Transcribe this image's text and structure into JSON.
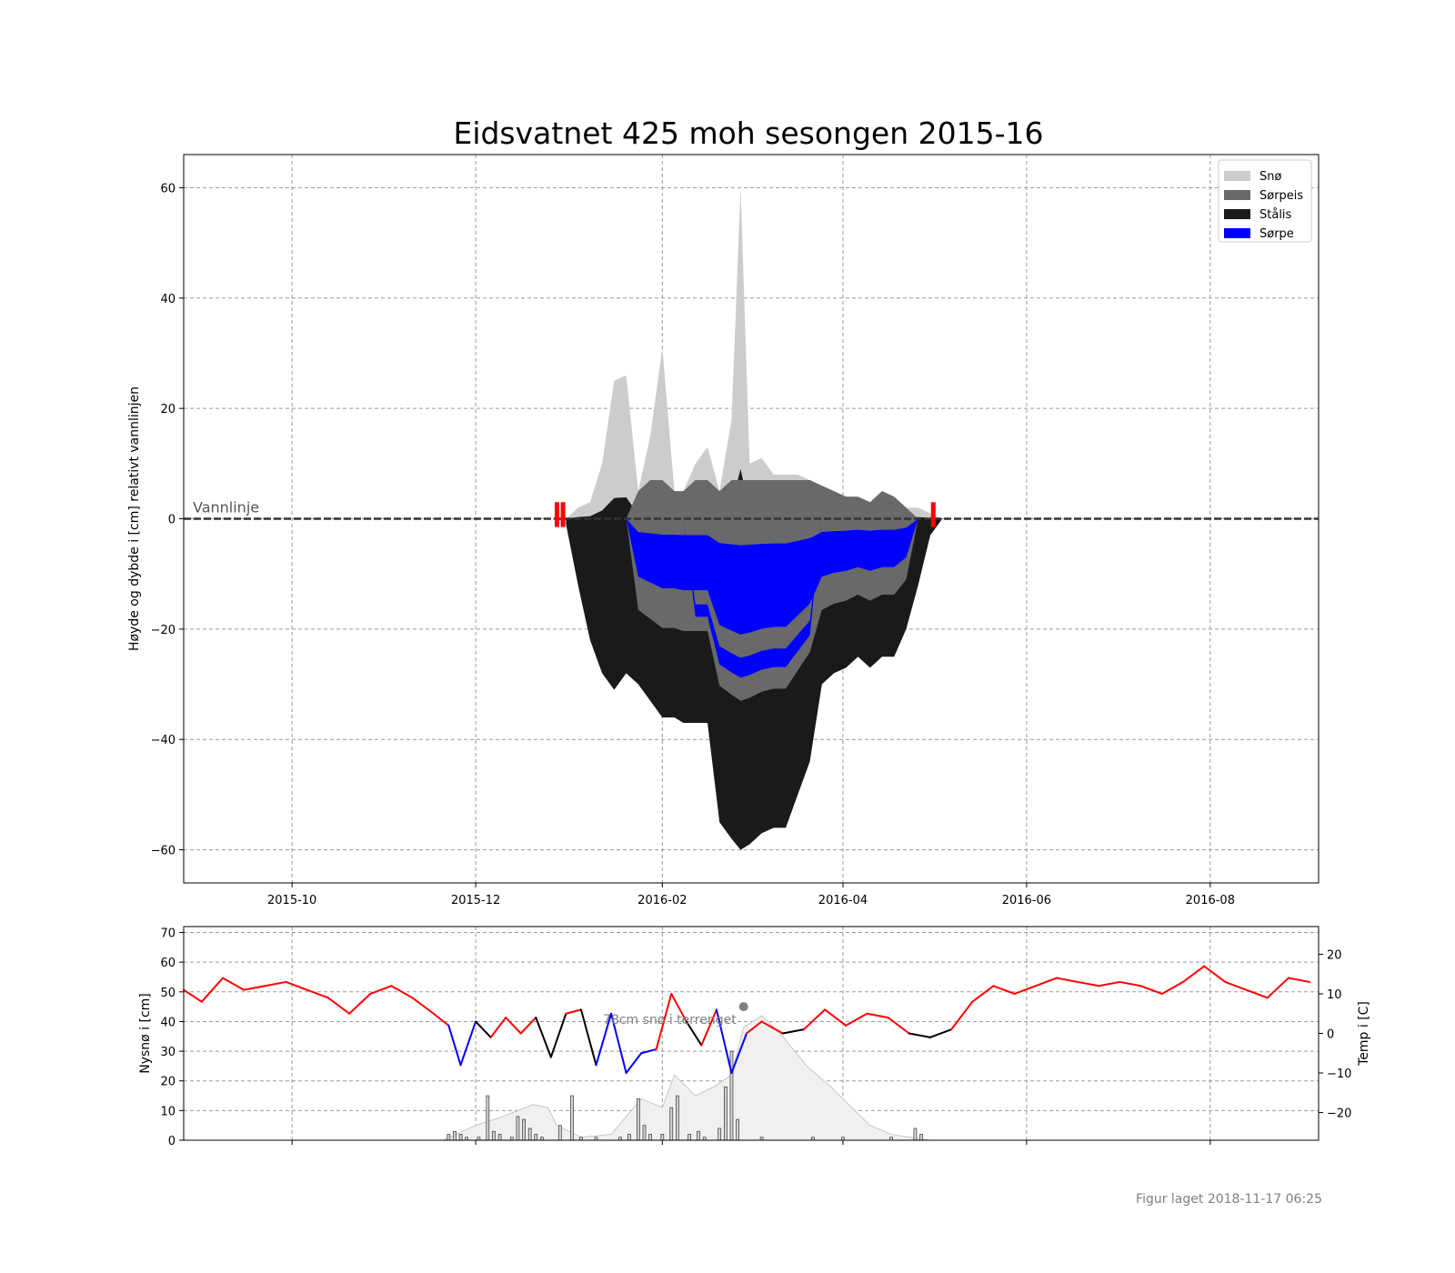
{
  "chart_data": [
    {
      "type": "area",
      "title": "Eidsvatnet 425 moh sesongen 2015-16",
      "xlabel": "",
      "ylabel": "Høyde og dybde i [cm] relativt vannlinjen",
      "xlim": [
        "2015-08-26",
        "2016-09-06"
      ],
      "ylim": [
        -66,
        66
      ],
      "x_ticks": [
        "2015-10",
        "2015-12",
        "2016-02",
        "2016-04",
        "2016-06",
        "2016-08"
      ],
      "y_ticks": [
        -60,
        -40,
        -20,
        0,
        20,
        40,
        60
      ],
      "grid": true,
      "legend_position": "top-right",
      "waterline_label": "Vannlinje",
      "legend": [
        {
          "name": "Snø",
          "color": "#cccccc"
        },
        {
          "name": "Sørpeis",
          "color": "#696969"
        },
        {
          "name": "Stålis",
          "color": "#1a1a1a"
        },
        {
          "name": "Sørpe",
          "color": "#0000ff"
        }
      ],
      "ice_markers": [
        {
          "date": "2015-12-28",
          "color": "#ff0000"
        },
        {
          "date": "2015-12-30",
          "color": "#ff0000"
        },
        {
          "date": "2016-05-01",
          "color": "#ff0000"
        }
      ],
      "ice_profile": {
        "dates": [
          "2015-12-31",
          "2016-01-04",
          "2016-01-08",
          "2016-01-12",
          "2016-01-16",
          "2016-01-20",
          "2016-01-24",
          "2016-01-28",
          "2016-02-01",
          "2016-02-05",
          "2016-02-08",
          "2016-02-12",
          "2016-02-16",
          "2016-02-20",
          "2016-02-24",
          "2016-02-27",
          "2016-03-01",
          "2016-03-05",
          "2016-03-09",
          "2016-03-13",
          "2016-03-17",
          "2016-03-21",
          "2016-03-25",
          "2016-03-29",
          "2016-04-02",
          "2016-04-06",
          "2016-04-10",
          "2016-04-14",
          "2016-04-18",
          "2016-04-22",
          "2016-04-26",
          "2016-04-30",
          "2016-05-04"
        ],
        "top": [
          0,
          2,
          3,
          10,
          25,
          26,
          5,
          15,
          31,
          5,
          5,
          10,
          13,
          5,
          18,
          60,
          10,
          11,
          8,
          8,
          8,
          7,
          6,
          5,
          4,
          4,
          3,
          5,
          4,
          2,
          2,
          1,
          0
        ],
        "bottom": [
          -1,
          -12,
          -22,
          -28,
          -31,
          -28,
          -30,
          -33,
          -36,
          -36,
          -37,
          -37,
          -37,
          -55,
          -58,
          -60,
          -59,
          -57,
          -56,
          -56,
          -50,
          -44,
          -30,
          -28,
          -27,
          -25,
          -27,
          -25,
          -25,
          -20,
          -12,
          -3,
          0
        ]
      }
    },
    {
      "type": "bar",
      "ylabel": "Nysnø i [cm]",
      "ylim": [
        0,
        72
      ],
      "y_ticks": [
        0,
        10,
        20,
        30,
        40,
        50,
        60,
        70
      ],
      "grid": true,
      "bar_color": "#d3d3d3",
      "snow_area_color": "#f0f0f0",
      "annotation": "78cm snø i terrenget",
      "annotation_date": "2016-02-28",
      "annotation_value": 45,
      "new_snow": [
        {
          "date": "2015-11-22",
          "value": 2
        },
        {
          "date": "2015-11-24",
          "value": 3
        },
        {
          "date": "2015-11-26",
          "value": 2
        },
        {
          "date": "2015-11-28",
          "value": 1
        },
        {
          "date": "2015-12-02",
          "value": 1
        },
        {
          "date": "2015-12-05",
          "value": 15
        },
        {
          "date": "2015-12-07",
          "value": 3
        },
        {
          "date": "2015-12-09",
          "value": 2
        },
        {
          "date": "2015-12-13",
          "value": 1
        },
        {
          "date": "2015-12-15",
          "value": 8
        },
        {
          "date": "2015-12-17",
          "value": 7
        },
        {
          "date": "2015-12-19",
          "value": 4
        },
        {
          "date": "2015-12-21",
          "value": 2
        },
        {
          "date": "2015-12-23",
          "value": 1
        },
        {
          "date": "2015-12-29",
          "value": 5
        },
        {
          "date": "2016-01-02",
          "value": 15
        },
        {
          "date": "2016-01-05",
          "value": 1
        },
        {
          "date": "2016-01-10",
          "value": 1
        },
        {
          "date": "2016-01-18",
          "value": 1
        },
        {
          "date": "2016-01-21",
          "value": 2
        },
        {
          "date": "2016-01-24",
          "value": 14
        },
        {
          "date": "2016-01-26",
          "value": 5
        },
        {
          "date": "2016-01-28",
          "value": 2
        },
        {
          "date": "2016-02-01",
          "value": 2
        },
        {
          "date": "2016-02-04",
          "value": 11
        },
        {
          "date": "2016-02-06",
          "value": 15
        },
        {
          "date": "2016-02-10",
          "value": 2
        },
        {
          "date": "2016-02-13",
          "value": 3
        },
        {
          "date": "2016-02-15",
          "value": 1
        },
        {
          "date": "2016-02-20",
          "value": 4
        },
        {
          "date": "2016-02-22",
          "value": 18
        },
        {
          "date": "2016-02-24",
          "value": 30
        },
        {
          "date": "2016-02-26",
          "value": 7
        },
        {
          "date": "2016-03-05",
          "value": 1
        },
        {
          "date": "2016-03-22",
          "value": 1
        },
        {
          "date": "2016-04-01",
          "value": 1
        },
        {
          "date": "2016-04-17",
          "value": 1
        },
        {
          "date": "2016-04-25",
          "value": 4
        },
        {
          "date": "2016-04-27",
          "value": 2
        }
      ],
      "snow_depth": {
        "dates": [
          "2015-11-20",
          "2015-12-01",
          "2015-12-10",
          "2015-12-20",
          "2015-12-25",
          "2015-12-28",
          "2016-01-05",
          "2016-01-15",
          "2016-01-25",
          "2016-02-01",
          "2016-02-05",
          "2016-02-12",
          "2016-02-18",
          "2016-02-24",
          "2016-02-28",
          "2016-03-05",
          "2016-03-12",
          "2016-03-20",
          "2016-03-28",
          "2016-04-05",
          "2016-04-10",
          "2016-04-17",
          "2016-04-30"
        ],
        "values": [
          0,
          5,
          8,
          12,
          11,
          5,
          1,
          2,
          14,
          11,
          22,
          15,
          18,
          22,
          38,
          42,
          35,
          25,
          18,
          10,
          5,
          2,
          0
        ]
      }
    },
    {
      "type": "line",
      "ylabel": "Temp i [C]",
      "ylim": [
        -27,
        27
      ],
      "y_ticks": [
        -20,
        -10,
        0,
        10,
        20
      ],
      "series": [],
      "color_rule": {
        "above_1": "#ff0000",
        "between": "#000000",
        "below_-1": "#0000ff"
      },
      "temperature": {
        "dates": [
          "2015-08-26",
          "2015-09-01",
          "2015-09-08",
          "2015-09-15",
          "2015-09-22",
          "2015-09-29",
          "2015-10-06",
          "2015-10-13",
          "2015-10-20",
          "2015-10-27",
          "2015-11-03",
          "2015-11-10",
          "2015-11-17",
          "2015-11-22",
          "2015-11-26",
          "2015-12-01",
          "2015-12-06",
          "2015-12-11",
          "2015-12-16",
          "2015-12-21",
          "2015-12-26",
          "2015-12-31",
          "2016-01-05",
          "2016-01-10",
          "2016-01-15",
          "2016-01-20",
          "2016-01-25",
          "2016-01-30",
          "2016-02-04",
          "2016-02-09",
          "2016-02-14",
          "2016-02-19",
          "2016-02-24",
          "2016-02-29",
          "2016-03-05",
          "2016-03-12",
          "2016-03-19",
          "2016-03-26",
          "2016-04-02",
          "2016-04-09",
          "2016-04-16",
          "2016-04-23",
          "2016-04-30",
          "2016-05-07",
          "2016-05-14",
          "2016-05-21",
          "2016-05-28",
          "2016-06-04",
          "2016-06-11",
          "2016-06-18",
          "2016-06-25",
          "2016-07-02",
          "2016-07-09",
          "2016-07-16",
          "2016-07-23",
          "2016-07-30",
          "2016-08-06",
          "2016-08-13",
          "2016-08-20",
          "2016-08-27",
          "2016-09-03"
        ],
        "values": [
          11,
          8,
          14,
          11,
          12,
          13,
          11,
          9,
          5,
          10,
          12,
          9,
          5,
          2,
          -8,
          3,
          -1,
          4,
          0,
          4,
          -6,
          5,
          6,
          -8,
          5,
          -10,
          -5,
          -4,
          10,
          3,
          -3,
          6,
          -10,
          0,
          3,
          0,
          1,
          6,
          2,
          5,
          4,
          0,
          -1,
          1,
          8,
          12,
          10,
          12,
          14,
          13,
          12,
          13,
          12,
          10,
          13,
          17,
          13,
          11,
          9,
          14,
          13
        ]
      }
    }
  ],
  "footer": {
    "created": "Figur laget 2018-11-17 06:25"
  }
}
